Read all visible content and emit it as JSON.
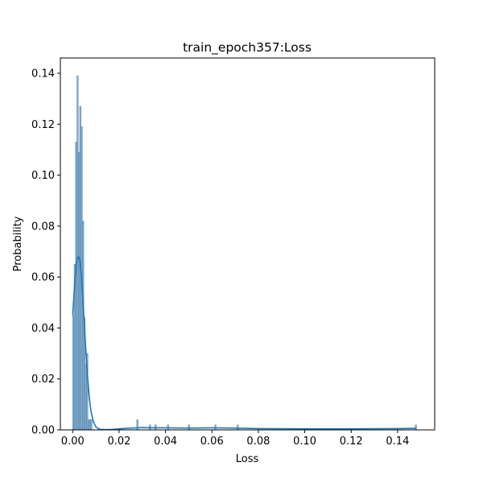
{
  "chart_data": {
    "type": "histogram",
    "title": "train_epoch357:Loss",
    "xlabel": "Loss",
    "ylabel": "Probability",
    "xlim": [
      -0.0053,
      0.156
    ],
    "ylim": [
      0.0,
      0.146
    ],
    "xticks": [
      0.0,
      0.02,
      0.04,
      0.06,
      0.08,
      0.1,
      0.12,
      0.14
    ],
    "xtick_labels": [
      "0.00",
      "0.02",
      "0.04",
      "0.06",
      "0.08",
      "0.10",
      "0.12",
      "0.14"
    ],
    "yticks": [
      0.0,
      0.02,
      0.04,
      0.06,
      0.08,
      0.1,
      0.12,
      0.14
    ],
    "ytick_labels": [
      "0.00",
      "0.02",
      "0.04",
      "0.06",
      "0.08",
      "0.10",
      "0.12",
      "0.14"
    ],
    "grid": false,
    "bar_color": "#6f9fc7",
    "bar_edge_color": "#4a7aa3",
    "kde_color": "#1f77b4",
    "bars": [
      {
        "x0": 0.0,
        "x1": 0.0006,
        "y": 0.045
      },
      {
        "x0": 0.0006,
        "x1": 0.0012,
        "y": 0.065
      },
      {
        "x0": 0.0012,
        "x1": 0.0018,
        "y": 0.113
      },
      {
        "x0": 0.0018,
        "x1": 0.0024,
        "y": 0.139
      },
      {
        "x0": 0.0024,
        "x1": 0.003,
        "y": 0.109
      },
      {
        "x0": 0.003,
        "x1": 0.0036,
        "y": 0.127
      },
      {
        "x0": 0.0036,
        "x1": 0.0042,
        "y": 0.119
      },
      {
        "x0": 0.0042,
        "x1": 0.0048,
        "y": 0.082
      },
      {
        "x0": 0.0048,
        "x1": 0.0054,
        "y": 0.044
      },
      {
        "x0": 0.0054,
        "x1": 0.006,
        "y": 0.026
      },
      {
        "x0": 0.006,
        "x1": 0.0066,
        "y": 0.03
      },
      {
        "x0": 0.0066,
        "x1": 0.0072,
        "y": 0.004
      },
      {
        "x0": 0.0072,
        "x1": 0.0078,
        "y": 0.004
      },
      {
        "x0": 0.0078,
        "x1": 0.0084,
        "y": 0.004
      },
      {
        "x0": 0.0276,
        "x1": 0.0282,
        "y": 0.004
      },
      {
        "x0": 0.033,
        "x1": 0.0336,
        "y": 0.002
      },
      {
        "x0": 0.0354,
        "x1": 0.036,
        "y": 0.002
      },
      {
        "x0": 0.0408,
        "x1": 0.0414,
        "y": 0.002
      },
      {
        "x0": 0.0498,
        "x1": 0.0504,
        "y": 0.002
      },
      {
        "x0": 0.0612,
        "x1": 0.0618,
        "y": 0.002
      },
      {
        "x0": 0.0708,
        "x1": 0.0714,
        "y": 0.002
      },
      {
        "x0": 0.1476,
        "x1": 0.1482,
        "y": 0.002
      }
    ],
    "kde": {
      "x": [
        0.0,
        0.0005,
        0.001,
        0.0015,
        0.002,
        0.0025,
        0.003,
        0.0035,
        0.004,
        0.0045,
        0.005,
        0.0055,
        0.006,
        0.0065,
        0.007,
        0.0075,
        0.008,
        0.009,
        0.01,
        0.011,
        0.012,
        0.014,
        0.017,
        0.02,
        0.025,
        0.03,
        0.035,
        0.04,
        0.05,
        0.06,
        0.07,
        0.08,
        0.1,
        0.12,
        0.14,
        0.148
      ],
      "y": [
        0.045,
        0.052,
        0.059,
        0.064,
        0.0672,
        0.068,
        0.067,
        0.063,
        0.057,
        0.05,
        0.042,
        0.034,
        0.0265,
        0.02,
        0.0145,
        0.01,
        0.0068,
        0.003,
        0.0012,
        0.0005,
        0.0002,
        0.0001,
        0.0002,
        0.0004,
        0.0007,
        0.0009,
        0.0008,
        0.0008,
        0.0007,
        0.0008,
        0.0007,
        0.0005,
        0.0004,
        0.0004,
        0.0005,
        0.0006
      ]
    }
  }
}
